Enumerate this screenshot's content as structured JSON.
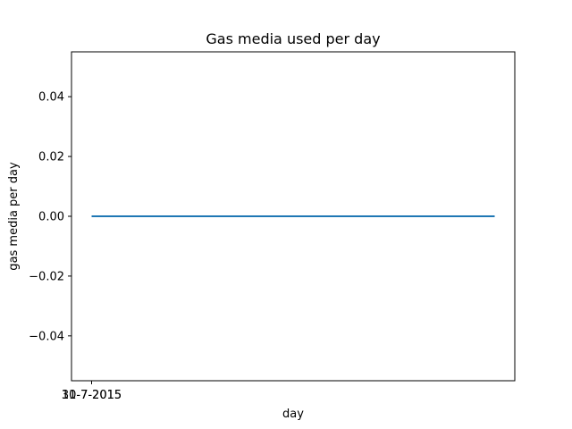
{
  "chart_data": {
    "type": "line",
    "title": "Gas media used per day",
    "xlabel": "day",
    "ylabel": "gas media per day",
    "x_tick_labels": [
      "10-7-2015",
      "31-7-2015"
    ],
    "x": [
      "10-7-2015",
      "31-7-2015"
    ],
    "series": [
      {
        "values": [
          0,
          0
        ],
        "color": "#1f77b4"
      }
    ],
    "ylim": [
      -0.055,
      0.055
    ],
    "y_ticks": [
      -0.04,
      -0.02,
      0.0,
      0.02,
      0.04
    ],
    "y_tick_labels": [
      "−0.04",
      "−0.02",
      "0.00",
      "0.02",
      "0.04"
    ],
    "grid": false,
    "legend": "none"
  }
}
